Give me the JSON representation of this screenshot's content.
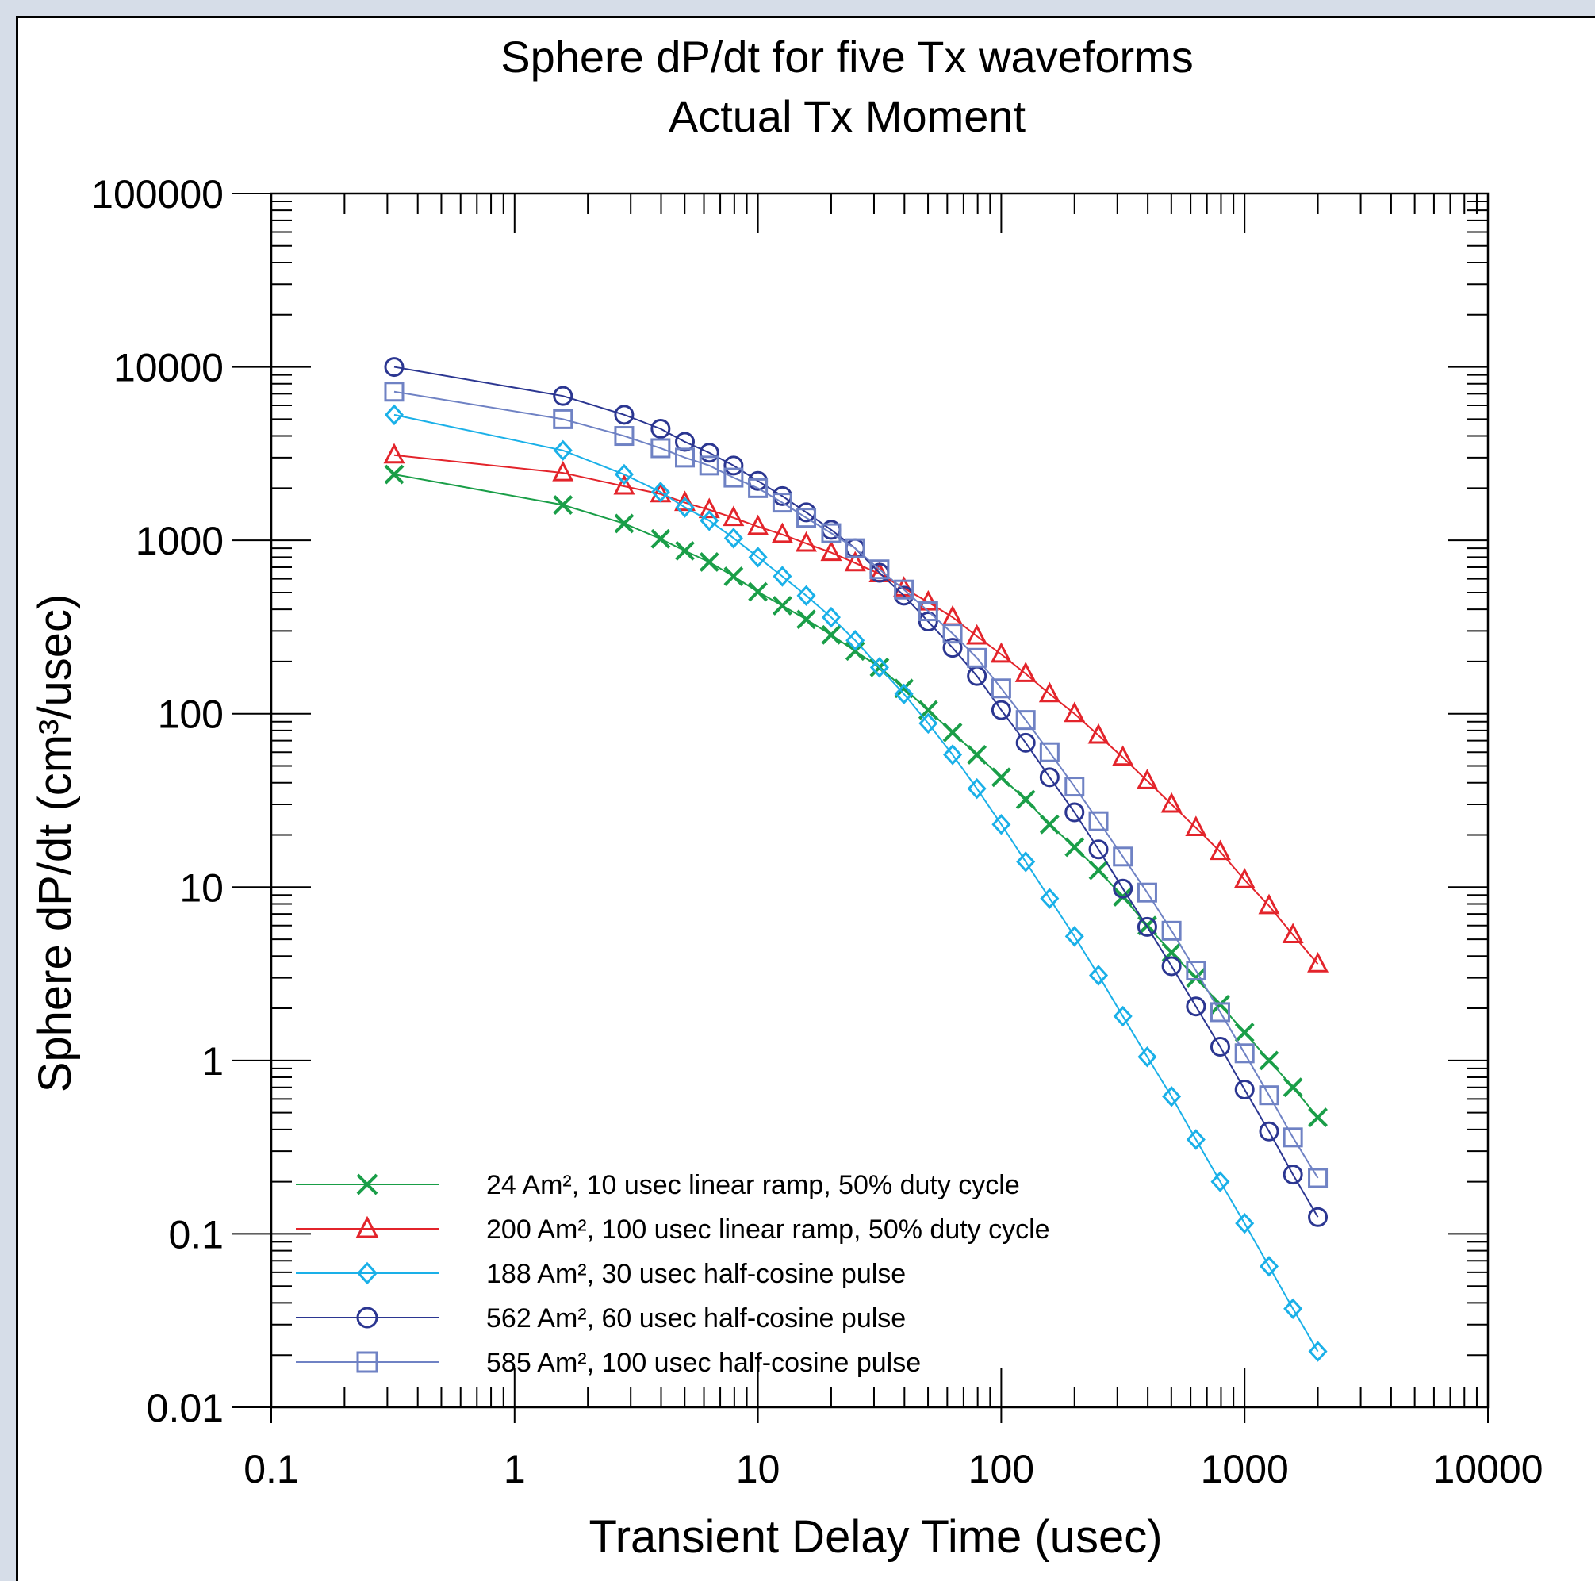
{
  "chart_data": {
    "type": "line",
    "title": "Sphere dP/dt for five Tx waveforms",
    "subtitle": "Actual Tx Moment",
    "xlabel": "Transient Delay Time (usec)",
    "ylabel": "Sphere dP/dt (cm³/usec)",
    "x_scale": "log",
    "y_scale": "log",
    "xlim": [
      0.1,
      10000
    ],
    "ylim": [
      0.01,
      100000
    ],
    "x_ticks": [
      "0.1",
      "1",
      "10",
      "100",
      "1000",
      "10000"
    ],
    "y_ticks": [
      "0.01",
      "0.1",
      "1",
      "10",
      "100",
      "1000",
      "10000",
      "100000"
    ],
    "legend_position": "bottom-left",
    "grid": false,
    "x": [
      0.32,
      1.58,
      2.82,
      3.98,
      5.01,
      6.31,
      7.94,
      10,
      12.6,
      15.8,
      20,
      25.1,
      31.6,
      39.8,
      50.1,
      63.1,
      79.4,
      100,
      126,
      158,
      200,
      251,
      316,
      398,
      501,
      631,
      794,
      1000,
      1260,
      1580,
      2000
    ],
    "series": [
      {
        "name": "24 Am², 10 usec linear ramp, 50% duty cycle",
        "color": "#1a9e48",
        "marker": "x",
        "values": [
          2400,
          1600,
          1250,
          1020,
          870,
          750,
          620,
          505,
          420,
          350,
          285,
          230,
          185,
          140,
          105,
          78,
          58,
          43,
          32,
          23,
          17,
          12.5,
          8.8,
          6.0,
          4.2,
          3.0,
          2.1,
          1.45,
          1.0,
          0.7,
          0.47
        ]
      },
      {
        "name": "200 Am², 100 usec linear ramp, 50% duty cycle",
        "color": "#e3242b",
        "marker": "triangle",
        "values": [
          3100,
          2450,
          2050,
          1850,
          1650,
          1500,
          1350,
          1200,
          1080,
          960,
          850,
          740,
          640,
          530,
          440,
          360,
          280,
          220,
          170,
          130,
          100,
          75,
          56,
          41,
          30,
          22,
          16,
          11,
          7.8,
          5.3,
          3.6
        ]
      },
      {
        "name": "188 Am², 30 usec half-cosine pulse",
        "color": "#1ab0e8",
        "marker": "diamond",
        "values": [
          5300,
          3300,
          2400,
          1900,
          1550,
          1300,
          1030,
          800,
          620,
          480,
          360,
          265,
          185,
          130,
          88,
          58,
          37,
          23,
          14,
          8.6,
          5.2,
          3.1,
          1.8,
          1.05,
          0.62,
          0.35,
          0.2,
          0.115,
          0.065,
          0.037,
          0.021
        ]
      },
      {
        "name": "562 Am², 60 usec half-cosine pulse",
        "color": "#2b3691",
        "marker": "circle",
        "values": [
          10000,
          6800,
          5300,
          4400,
          3700,
          3200,
          2700,
          2200,
          1800,
          1450,
          1150,
          900,
          650,
          480,
          340,
          240,
          165,
          105,
          68,
          43,
          27,
          16.5,
          9.8,
          5.9,
          3.5,
          2.05,
          1.2,
          0.68,
          0.39,
          0.22,
          0.125
        ]
      },
      {
        "name": "585 Am², 100 usec half-cosine pulse",
        "color": "#6f82c4",
        "marker": "square",
        "values": [
          7200,
          5000,
          4000,
          3400,
          3000,
          2700,
          2300,
          2000,
          1650,
          1350,
          1100,
          900,
          680,
          520,
          390,
          290,
          210,
          140,
          92,
          60,
          38,
          24,
          15,
          9.3,
          5.6,
          3.3,
          1.9,
          1.1,
          0.63,
          0.36,
          0.21
        ]
      }
    ]
  }
}
